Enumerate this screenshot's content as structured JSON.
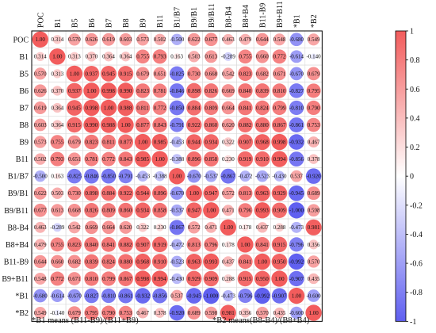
{
  "chart_data": {
    "type": "heatmap",
    "subtype": "correlation-matrix",
    "title": "",
    "variables": [
      "POC",
      "B1",
      "B5",
      "B6",
      "B7",
      "B8",
      "B9",
      "B11",
      "B1/B7",
      "B9/B1",
      "B9/B11",
      "B8-B4",
      "B8+B4",
      "B11-B9",
      "B9+B11",
      "*B1",
      "*B2"
    ],
    "matrix": [
      [
        1.0,
        0.314,
        0.57,
        0.626,
        0.619,
        0.603,
        0.573,
        0.502,
        -0.5,
        0.622,
        0.677,
        0.463,
        0.479,
        0.644,
        0.548,
        -0.68,
        0.549
      ],
      [
        0.314,
        1.0,
        0.313,
        0.37,
        0.364,
        0.364,
        0.755,
        0.793,
        0.163,
        0.503,
        0.613,
        -0.289,
        0.755,
        0.66,
        0.772,
        -0.614,
        -0.14
      ],
      [
        0.57,
        0.313,
        1.0,
        0.937,
        0.945,
        0.915,
        0.679,
        0.651,
        -0.825,
        0.73,
        0.668,
        0.542,
        0.823,
        0.682,
        0.671,
        -0.67,
        0.679
      ],
      [
        0.626,
        0.37,
        0.937,
        1.0,
        0.998,
        0.99,
        0.823,
        0.781,
        -0.846,
        0.898,
        0.826,
        0.669,
        0.84,
        0.839,
        0.81,
        -0.827,
        0.795
      ],
      [
        0.619,
        0.364,
        0.945,
        0.998,
        1.0,
        0.988,
        0.811,
        0.772,
        -0.85,
        0.884,
        0.809,
        0.664,
        0.841,
        0.824,
        0.799,
        -0.81,
        0.79
      ],
      [
        0.603,
        0.364,
        0.915,
        0.99,
        0.988,
        1.0,
        0.877,
        0.843,
        -0.791,
        0.922,
        0.86,
        0.62,
        0.882,
        0.88,
        0.867,
        -0.861,
        0.753
      ],
      [
        0.573,
        0.755,
        0.679,
        0.823,
        0.811,
        0.877,
        1.0,
        0.985,
        -0.453,
        0.944,
        0.934,
        0.322,
        0.907,
        0.968,
        0.998,
        -0.932,
        0.467
      ],
      [
        0.502,
        0.793,
        0.651,
        0.781,
        0.772,
        0.843,
        0.985,
        1.0,
        -0.388,
        0.896,
        0.858,
        0.23,
        0.919,
        0.91,
        0.994,
        -0.856,
        0.378
      ],
      [
        -0.5,
        0.163,
        -0.825,
        -0.846,
        -0.85,
        -0.791,
        -0.453,
        -0.388,
        1.0,
        -0.67,
        -0.537,
        -0.867,
        -0.472,
        -0.523,
        -0.43,
        0.537,
        -0.92
      ],
      [
        0.622,
        0.503,
        0.73,
        0.898,
        0.884,
        0.922,
        0.944,
        0.896,
        -0.67,
        1.0,
        0.947,
        0.572,
        0.813,
        0.963,
        0.929,
        -0.945,
        0.689
      ],
      [
        0.677,
        0.613,
        0.668,
        0.826,
        0.809,
        0.86,
        0.934,
        0.858,
        -0.537,
        0.947,
        1.0,
        0.471,
        0.796,
        0.993,
        0.909,
        -1.0,
        0.598
      ],
      [
        0.463,
        -0.289,
        0.542,
        0.669,
        0.664,
        0.62,
        0.322,
        0.23,
        -0.867,
        0.572,
        0.471,
        1.0,
        0.178,
        0.437,
        0.288,
        -0.473,
        0.981
      ],
      [
        0.479,
        0.755,
        0.823,
        0.84,
        0.841,
        0.882,
        0.907,
        0.919,
        -0.472,
        0.813,
        0.796,
        0.178,
        1.0,
        0.841,
        0.915,
        -0.796,
        0.356
      ],
      [
        0.644,
        0.66,
        0.682,
        0.839,
        0.824,
        0.88,
        0.968,
        0.91,
        -0.523,
        0.963,
        0.993,
        0.437,
        0.841,
        1.0,
        0.95,
        -0.992,
        0.57
      ],
      [
        0.548,
        0.772,
        0.671,
        0.81,
        0.799,
        0.867,
        0.998,
        0.994,
        -0.43,
        0.929,
        0.909,
        0.288,
        0.915,
        0.95,
        1.0,
        -0.907,
        0.435
      ],
      [
        -0.68,
        -0.614,
        -0.67,
        -0.827,
        -0.81,
        -0.861,
        -0.932,
        -0.856,
        0.537,
        -0.945,
        -1.0,
        -0.473,
        -0.796,
        -0.992,
        -0.907,
        1.0,
        -0.6
      ],
      [
        0.549,
        -0.14,
        0.679,
        0.795,
        0.79,
        0.753,
        0.467,
        0.378,
        -0.92,
        0.689,
        0.598,
        0.981,
        0.356,
        0.57,
        0.435,
        -0.6,
        1.0
      ]
    ],
    "colorbar": {
      "min": -1,
      "max": 1,
      "ticks": [
        "1",
        "0.8",
        "0.6",
        "0.4",
        "0.2",
        "0",
        "-0.2",
        "-0.4",
        "-0.6",
        "-0.8",
        "-1"
      ]
    },
    "colors": {
      "positive": "#f25c5c",
      "negative": "#5f5ff0",
      "neutral": "#ffffff",
      "grid": "#d9d9d9",
      "frame": "#000000"
    },
    "notes": [
      "*B1 means (B11-B9)/(B11+B9)",
      "*B2 means(B8-B4)/(B8+B4)"
    ]
  }
}
